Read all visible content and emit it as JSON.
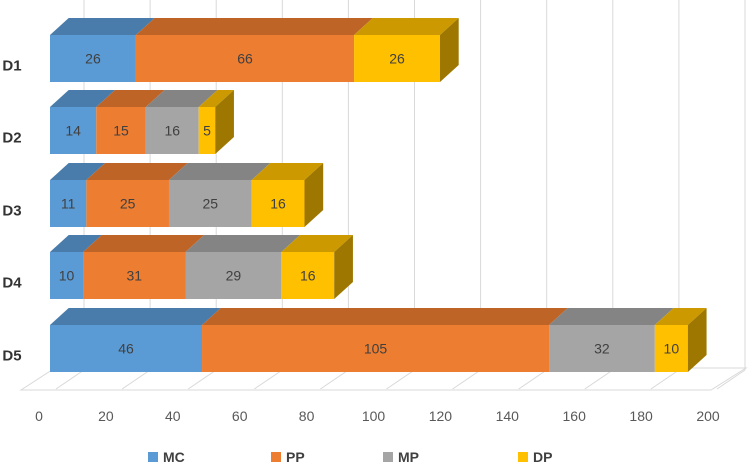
{
  "chart_data": {
    "type": "bar",
    "orientation": "horizontal",
    "stacked": true,
    "style": "3d",
    "categories": [
      "D1",
      "D2",
      "D3",
      "D4",
      "D5"
    ],
    "series": [
      {
        "name": "MC",
        "color": "#5B9BD5",
        "values": [
          26,
          14,
          11,
          10,
          46
        ]
      },
      {
        "name": "PP",
        "color": "#ED7D31",
        "values": [
          66,
          15,
          25,
          31,
          105
        ]
      },
      {
        "name": "MP",
        "color": "#A5A5A5",
        "values": [
          0,
          16,
          25,
          29,
          32
        ]
      },
      {
        "name": "DP",
        "color": "#FFC000",
        "values": [
          26,
          5,
          16,
          16,
          10
        ]
      }
    ],
    "x_ticks": [
      "0",
      "20",
      "40",
      "60",
      "80",
      "100",
      "120",
      "140",
      "160",
      "180",
      "200"
    ],
    "xlim": [
      0,
      200
    ],
    "grid": true,
    "legend_position": "bottom"
  }
}
